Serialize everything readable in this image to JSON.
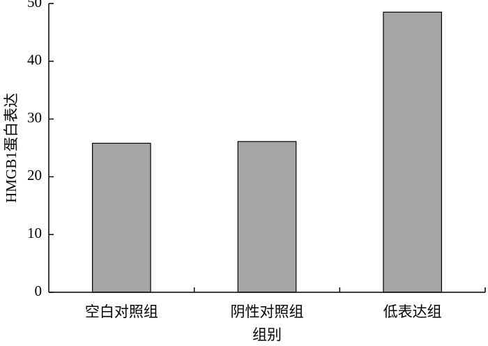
{
  "chart_data": {
    "type": "bar",
    "x_label": "组别",
    "y_label": "HMGB1蛋白表达",
    "categories": [
      "空白对照组",
      "阴性对照组",
      "低表达组"
    ],
    "values": [
      25.8,
      26.1,
      48.5
    ],
    "color": "#a6a6a6",
    "ylim": [
      0,
      50
    ],
    "yticks": [
      0,
      10,
      20,
      30,
      40,
      50
    ],
    "grid": false
  }
}
